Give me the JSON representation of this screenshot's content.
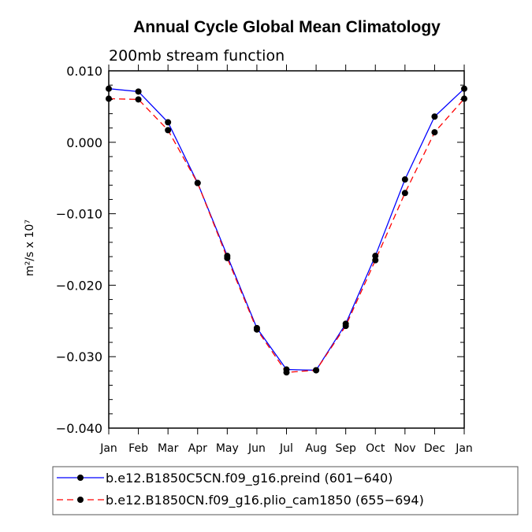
{
  "chart_data": {
    "type": "line",
    "title": "Annual Cycle Global Mean Climatology",
    "subtitle": "200mb stream function",
    "ylabel": "m²/s x 10⁷",
    "xlabel": "",
    "categories": [
      "Jan",
      "Feb",
      "Mar",
      "Apr",
      "May",
      "Jun",
      "Jul",
      "Aug",
      "Sep",
      "Oct",
      "Nov",
      "Dec",
      "Jan"
    ],
    "ylim": [
      -0.04,
      0.01
    ],
    "yticks": [
      0.01,
      0.0,
      -0.01,
      -0.02,
      -0.03,
      -0.04
    ],
    "ytick_labels": [
      "0.010",
      "0.000",
      "−0.010",
      "−0.020",
      "−0.030",
      "−0.040"
    ],
    "grid": false,
    "legend_position": "bottom",
    "series": [
      {
        "name": "b.e12.B1850C5CN.f09_g16.preind (601−640)",
        "color": "#0000ff",
        "line_style": "solid",
        "values": [
          0.0075,
          0.0071,
          0.0028,
          -0.0057,
          -0.0159,
          -0.026,
          -0.0318,
          -0.0319,
          -0.0254,
          -0.0159,
          -0.0052,
          0.0036,
          0.0075
        ]
      },
      {
        "name": "b.e12.B1850CN.f09_g16.plio_cam1850 (655−694)",
        "color": "#ff0000",
        "line_style": "dashed",
        "values": [
          0.0061,
          0.006,
          0.0017,
          -0.0057,
          -0.0162,
          -0.0262,
          -0.0322,
          -0.0319,
          -0.0257,
          -0.0165,
          -0.0071,
          0.0014,
          0.0061
        ]
      }
    ]
  }
}
